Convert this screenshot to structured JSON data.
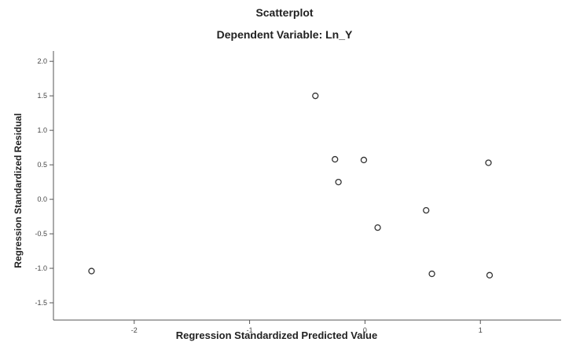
{
  "chart_data": {
    "type": "scatter",
    "title": "Scatterplot",
    "subtitle": "Dependent Variable: Ln_Y",
    "xlabel": "Regression Standardized Predicted Value",
    "ylabel": "Regression Standardized Residual",
    "xlim": [
      -2.7,
      1.7
    ],
    "ylim": [
      -1.75,
      2.15
    ],
    "xticks": [
      -2,
      -1,
      0,
      1
    ],
    "xtick_labels": [
      "-2",
      "-1",
      "0",
      "1"
    ],
    "yticks": [
      -1.5,
      -1.0,
      -0.5,
      0.0,
      0.5,
      1.0,
      1.5,
      2.0
    ],
    "ytick_labels": [
      "-1.5",
      "-1.0",
      "-0.5",
      "0.0",
      "0.5",
      "1.0",
      "1.5",
      "2.0"
    ],
    "grid": false,
    "marker": "open-circle",
    "points": [
      {
        "x": -2.37,
        "y": -1.04
      },
      {
        "x": -0.43,
        "y": 1.5
      },
      {
        "x": -0.26,
        "y": 0.58
      },
      {
        "x": -0.23,
        "y": 0.25
      },
      {
        "x": -0.01,
        "y": 0.57
      },
      {
        "x": 0.11,
        "y": -0.41
      },
      {
        "x": 0.53,
        "y": -0.16
      },
      {
        "x": 0.58,
        "y": -1.08
      },
      {
        "x": 1.07,
        "y": 0.53
      },
      {
        "x": 1.08,
        "y": -1.1
      }
    ]
  }
}
